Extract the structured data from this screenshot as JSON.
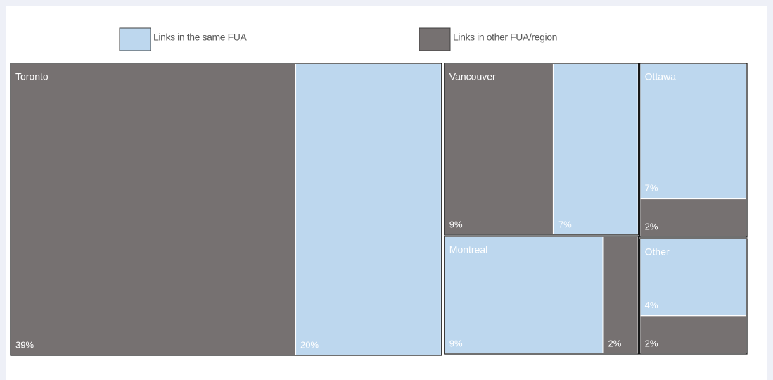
{
  "chart_data": {
    "type": "treemap",
    "categories": [
      "Toronto",
      "Vancouver",
      "Montreal",
      "Ottawa",
      "Other"
    ],
    "series": [
      {
        "name": "Links in the same FUA",
        "color": "#bdd7ee",
        "values": [
          20,
          7,
          9,
          7,
          4
        ],
        "value_labels": [
          "20%",
          "7%",
          "9%",
          "7%",
          "4%"
        ]
      },
      {
        "name": "Links in other FUA/region",
        "color": "#767171",
        "values": [
          39,
          9,
          2,
          2,
          2
        ],
        "value_labels": [
          "39%",
          "9%",
          "2%",
          "2%",
          "2%"
        ]
      }
    ]
  }
}
